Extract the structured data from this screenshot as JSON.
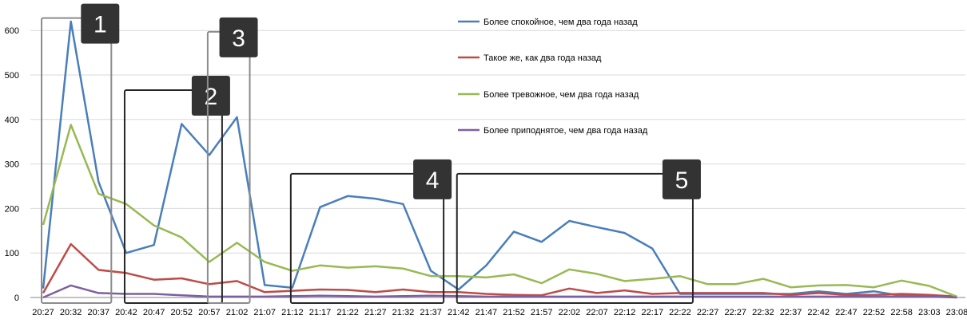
{
  "chart_data": {
    "type": "line",
    "title": "",
    "xlabel": "",
    "ylabel": "",
    "ylim": [
      0,
      650
    ],
    "yticks": [
      0,
      100,
      200,
      300,
      400,
      500,
      600
    ],
    "grid": "horizontal",
    "legend_position": "top-right",
    "x": [
      "20:27",
      "20:32",
      "20:37",
      "20:42",
      "20:47",
      "20:52",
      "20:57",
      "21:02",
      "21:07",
      "21:12",
      "21:17",
      "21:22",
      "21:27",
      "21:32",
      "21:37",
      "21:42",
      "21:47",
      "21:52",
      "21:57",
      "22:02",
      "22:07",
      "22:12",
      "22:17",
      "22:22",
      "22:27",
      "22:27",
      "22:32",
      "22:37",
      "22:42",
      "22:47",
      "22:52",
      "22:58",
      "23:03",
      "23:08"
    ],
    "series": [
      {
        "name": "Более спокойное, чем два года назад",
        "color": "#4a7ebb",
        "values": [
          20,
          620,
          260,
          100,
          118,
          390,
          320,
          405,
          28,
          22,
          203,
          228,
          222,
          210,
          60,
          18,
          72,
          148,
          125,
          172,
          158,
          145,
          110,
          8,
          8,
          8,
          8,
          8,
          14,
          8,
          14,
          4,
          4,
          2
        ]
      },
      {
        "name": "Такое же, как два года назад",
        "color": "#be4b48",
        "values": [
          10,
          120,
          62,
          55,
          40,
          43,
          30,
          37,
          12,
          15,
          18,
          17,
          12,
          18,
          12,
          12,
          8,
          6,
          5,
          20,
          10,
          16,
          8,
          10,
          10,
          10,
          10,
          6,
          10,
          6,
          6,
          8,
          6,
          2
        ]
      },
      {
        "name": "Более тревожное, чем два года назад",
        "color": "#98b954",
        "values": [
          163,
          388,
          233,
          210,
          162,
          135,
          80,
          123,
          80,
          60,
          72,
          67,
          70,
          65,
          48,
          48,
          45,
          52,
          32,
          63,
          53,
          37,
          42,
          48,
          30,
          30,
          42,
          23,
          27,
          28,
          23,
          38,
          26,
          2
        ]
      },
      {
        "name": "Более приподнятое, чем два года назад",
        "color": "#7d60a0",
        "values": [
          0,
          27,
          10,
          8,
          8,
          5,
          2,
          2,
          2,
          3,
          4,
          3,
          2,
          3,
          4,
          3,
          2,
          2,
          2,
          2,
          2,
          2,
          2,
          2,
          2,
          2,
          2,
          2,
          2,
          2,
          2,
          2,
          2,
          0
        ]
      }
    ],
    "annotations": [
      {
        "label": "1",
        "x_from": "20:27",
        "x_to": "20:37",
        "y_top": 628,
        "border": "gray"
      },
      {
        "label": "2",
        "x_from": "20:42",
        "x_to": "20:57",
        "y_top": 466,
        "border": "black"
      },
      {
        "label": "3",
        "x_from": "20:57",
        "x_to": "21:02",
        "y_top": 597,
        "border": "gray"
      },
      {
        "label": "4",
        "x_from": "21:12",
        "x_to": "21:37",
        "y_top": 278,
        "border": "black"
      },
      {
        "label": "5",
        "x_from": "21:42",
        "x_to": "22:22",
        "y_top": 278,
        "border": "black"
      }
    ]
  }
}
